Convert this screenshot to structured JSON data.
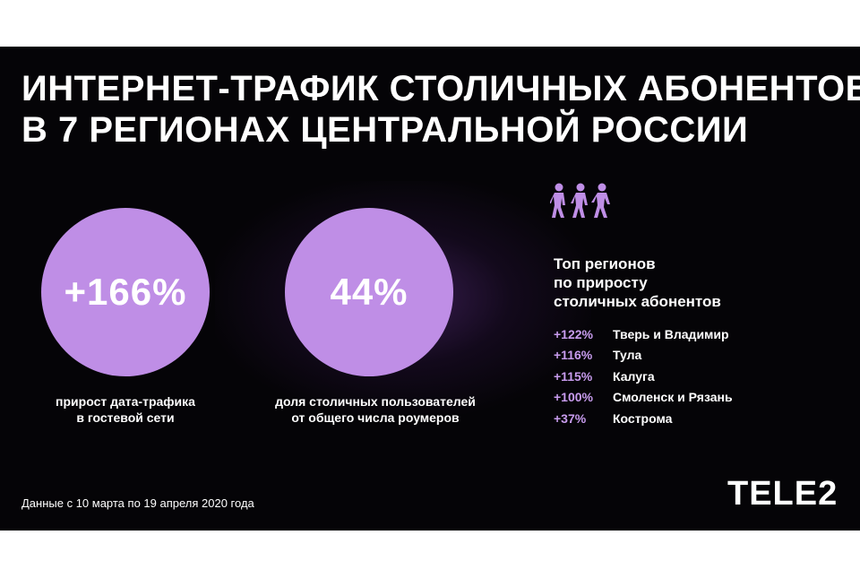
{
  "title": {
    "line1": "ИНТЕРНЕТ-ТРАФИК СТОЛИЧНЫХ АБОНЕНТОВ",
    "line2": "В 7 РЕГИОНАХ ЦЕНТРАЛЬНОЙ РОССИИ"
  },
  "stats": [
    {
      "value": "+166%",
      "caption_line1": "прирост дата-трафика",
      "caption_line2": "в гостевой сети"
    },
    {
      "value": "44%",
      "caption_line1": "доля столичных пользователей",
      "caption_line2": "от общего числа роумеров"
    }
  ],
  "regions": {
    "icon": "people-walking-icon",
    "heading_line1": "Топ регионов",
    "heading_line2": "по приросту",
    "heading_line3": "столичных абонентов",
    "items": [
      {
        "percent": "+122%",
        "name": "Тверь и Владимир"
      },
      {
        "percent": "+116%",
        "name": "Тула"
      },
      {
        "percent": "+115%",
        "name": "Калуга"
      },
      {
        "percent": "+100%",
        "name": "Смоленск и Рязань"
      },
      {
        "percent": "+37%",
        "name": "Кострома"
      }
    ]
  },
  "footnote": "Данные с 10 марта по 19 апреля 2020 года",
  "logo": "TELE2",
  "colors": {
    "background": "#050407",
    "circle": "#bf8ee6",
    "accent_text": "#c89cee",
    "text": "#ffffff"
  }
}
